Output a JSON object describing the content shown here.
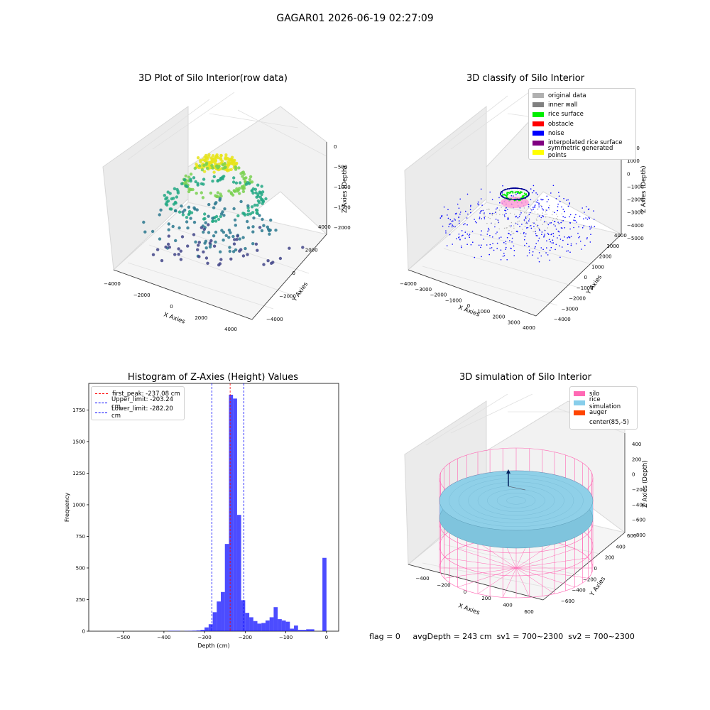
{
  "figure_title": "GAGAR01 2026-06-19 02:27:09",
  "panels": {
    "raw": {
      "title": "3D Plot of Silo Interior(row data)",
      "xlabel": "X Axies",
      "ylabel": "Y Axies",
      "zlabel": "Z Axies (Depth)",
      "xticks": [
        "−4000",
        "−2000",
        "0",
        "2000",
        "4000"
      ],
      "yticks": [
        "−4000",
        "−2000",
        "0",
        "2000",
        "4000"
      ],
      "zticks": [
        "0",
        "−500",
        "−1000",
        "−1500",
        "−2000"
      ]
    },
    "classify": {
      "title": "3D classify of Silo Interior",
      "xlabel": "X Axies",
      "ylabel": "Y Axies",
      "zlabel": "Z Axies (Depth)",
      "xticks": [
        "−4000",
        "−3000",
        "−2000",
        "−1000",
        "0",
        "1000",
        "2000",
        "3000",
        "4000"
      ],
      "yticks": [
        "−4000",
        "−3000",
        "−2000",
        "−1000",
        "0",
        "1000",
        "2000",
        "3000",
        "4000"
      ],
      "zticks": [
        "2000",
        "1000",
        "0",
        "−1000",
        "−2000",
        "−3000",
        "−4000",
        "−5000"
      ],
      "legend": [
        {
          "label": "original data",
          "color": "#b0b0b0"
        },
        {
          "label": "inner wall",
          "color": "#808080"
        },
        {
          "label": "rice surface",
          "color": "#00ee00"
        },
        {
          "label": "obstacle",
          "color": "#ff0000"
        },
        {
          "label": "noise",
          "color": "#0000ff"
        },
        {
          "label": "interpolated rice surface",
          "color": "#800080"
        },
        {
          "label": "symmetric generated points",
          "color": "#ffff00"
        }
      ]
    },
    "simulation": {
      "title": "3D simulation of Silo Interior",
      "xlabel": "X Axies",
      "ylabel": "Y Axies",
      "zlabel": "Z Axies (Depth)",
      "xticks": [
        "−400",
        "−200",
        "0",
        "200",
        "400",
        "600"
      ],
      "yticks": [
        "−600",
        "−400",
        "−200",
        "0",
        "200",
        "400",
        "600"
      ],
      "zticks": [
        "400",
        "200",
        "0",
        "−200",
        "−400",
        "−600",
        "−800"
      ],
      "legend": [
        {
          "label": "silo",
          "color": "#ff69b4"
        },
        {
          "label": "rice simulation",
          "color": "#87ceeb"
        },
        {
          "label": "auger",
          "color": "#ff4500"
        },
        {
          "label": "center(85,-5)",
          "color": ""
        }
      ]
    }
  },
  "status": {
    "flag": "flag = 0",
    "avg_depth": "avgDepth = 243 cm",
    "sv1": "sv1 = 700~2300",
    "sv2": "sv2 = 700~2300"
  },
  "chart_data": [
    {
      "type": "scatter",
      "title": "3D Plot of Silo Interior(row data)",
      "xlabel": "X Axies",
      "ylabel": "Y Axies",
      "zlabel": "Z Axies (Depth)",
      "xlim": [
        -4500,
        4500
      ],
      "ylim": [
        -4500,
        4500
      ],
      "zlim": [
        -2300,
        100
      ],
      "colormap": "viridis",
      "point_groups": [
        {
          "z_range": [
            -400,
            -100
          ],
          "color": "#e8e419",
          "description_shape": "central dome"
        },
        {
          "z_range": [
            -900,
            -500
          ],
          "color": "#7ad151",
          "description_shape": "ring"
        },
        {
          "z_range": [
            -1400,
            -900
          ],
          "color": "#22a884",
          "description_shape": "ring"
        },
        {
          "z_range": [
            -2300,
            -1500
          ],
          "color": "#414487",
          "description_shape": "scattered floor"
        }
      ]
    },
    {
      "type": "scatter",
      "title": "3D classify of Silo Interior",
      "xlabel": "X Axies",
      "ylabel": "Y Axies",
      "zlabel": "Z Axies (Depth)",
      "xlim": [
        -4000,
        4000
      ],
      "ylim": [
        -4000,
        4000
      ],
      "zlim": [
        -5000,
        2000
      ],
      "series": [
        {
          "name": "original data",
          "color": "#b0b0b0"
        },
        {
          "name": "inner wall",
          "color": "#808080"
        },
        {
          "name": "rice surface",
          "color": "#00ee00"
        },
        {
          "name": "obstacle",
          "color": "#ff0000"
        },
        {
          "name": "noise",
          "color": "#0000ff"
        },
        {
          "name": "interpolated rice surface",
          "color": "#800080"
        },
        {
          "name": "symmetric generated points",
          "color": "#ffff00"
        }
      ]
    },
    {
      "type": "bar",
      "title": "Histogram of Z-Axies (Height) Values",
      "xlabel": "Depth (cm)",
      "ylabel": "Frequency",
      "xlim": [
        -585,
        30
      ],
      "ylim": [
        0,
        1960
      ],
      "xticks": [
        -500,
        -400,
        -300,
        -200,
        -100,
        0
      ],
      "yticks": [
        0,
        250,
        500,
        750,
        1000,
        1250,
        1500,
        1750
      ],
      "bin_width": 10,
      "bins": [
        {
          "x0": -390,
          "count": 3
        },
        {
          "x0": -380,
          "count": 3
        },
        {
          "x0": -370,
          "count": 3
        },
        {
          "x0": -350,
          "count": 2
        },
        {
          "x0": -340,
          "count": 3
        },
        {
          "x0": -330,
          "count": 4
        },
        {
          "x0": -320,
          "count": 6
        },
        {
          "x0": -310,
          "count": 10
        },
        {
          "x0": -300,
          "count": 30
        },
        {
          "x0": -290,
          "count": 55
        },
        {
          "x0": -280,
          "count": 150
        },
        {
          "x0": -270,
          "count": 235
        },
        {
          "x0": -260,
          "count": 310
        },
        {
          "x0": -250,
          "count": 690
        },
        {
          "x0": -240,
          "count": 1870
        },
        {
          "x0": -230,
          "count": 1840
        },
        {
          "x0": -220,
          "count": 920
        },
        {
          "x0": -210,
          "count": 245
        },
        {
          "x0": -200,
          "count": 145
        },
        {
          "x0": -190,
          "count": 110
        },
        {
          "x0": -180,
          "count": 80
        },
        {
          "x0": -170,
          "count": 60
        },
        {
          "x0": -160,
          "count": 65
        },
        {
          "x0": -150,
          "count": 85
        },
        {
          "x0": -140,
          "count": 110
        },
        {
          "x0": -130,
          "count": 190
        },
        {
          "x0": -120,
          "count": 95
        },
        {
          "x0": -110,
          "count": 85
        },
        {
          "x0": -100,
          "count": 75
        },
        {
          "x0": -90,
          "count": 20
        },
        {
          "x0": -80,
          "count": 45
        },
        {
          "x0": -70,
          "count": 10
        },
        {
          "x0": -60,
          "count": 10
        },
        {
          "x0": -50,
          "count": 15
        },
        {
          "x0": -40,
          "count": 15
        },
        {
          "x0": -10,
          "count": 580
        }
      ],
      "bar_color": "#0000ff",
      "vlines": [
        {
          "label": "first_peak: -237.08 cm",
          "x": -237.08,
          "color": "#ff0000"
        },
        {
          "label": "Upper_limit: -203.24 cm",
          "x": -203.24,
          "color": "#0000ff"
        },
        {
          "label": "Lower_limit: -282.20 cm",
          "x": -282.2,
          "color": "#0000ff"
        }
      ]
    },
    {
      "type": "scatter",
      "title": "3D simulation of Silo Interior",
      "xlabel": "X Axies",
      "ylabel": "Y Axies",
      "zlabel": "Z Axies (Depth)",
      "xlim": [
        -550,
        750
      ],
      "ylim": [
        -650,
        650
      ],
      "zlim": [
        -900,
        450
      ],
      "series": [
        {
          "name": "silo",
          "color": "#ff69b4"
        },
        {
          "name": "rice simulation",
          "color": "#87ceeb"
        },
        {
          "name": "auger",
          "color": "#ff4500"
        },
        {
          "name": "center(85,-5)",
          "color": ""
        }
      ]
    }
  ]
}
